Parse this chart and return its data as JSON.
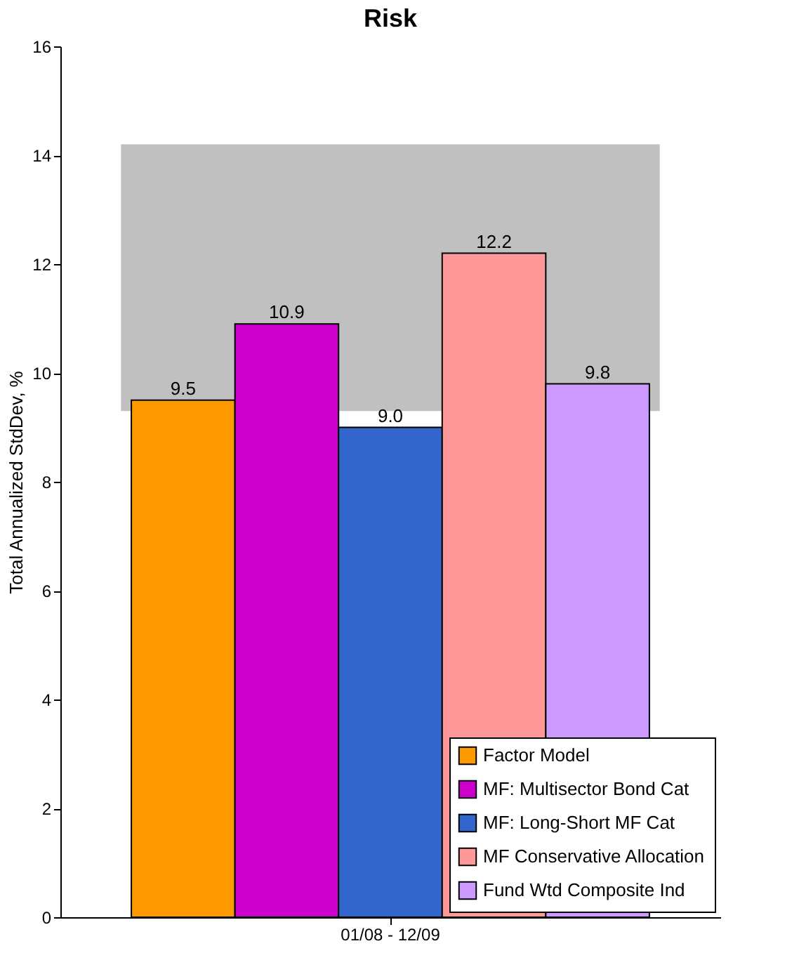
{
  "chart_data": {
    "type": "bar",
    "title": "Risk",
    "ylabel": "Total Annualized StdDev, %",
    "categories": [
      "01/08 - 12/09"
    ],
    "series": [
      {
        "name": "Factor Model",
        "color": "#ff9900",
        "values": [
          9.5
        ],
        "value_labels": [
          "9.5"
        ]
      },
      {
        "name": "MF: Multisector Bond Cat",
        "color": "#cc00cc",
        "values": [
          10.9
        ],
        "value_labels": [
          "10.9"
        ]
      },
      {
        "name": "MF: Long-Short MF Cat",
        "color": "#3366cc",
        "values": [
          9.0
        ],
        "value_labels": [
          "9.0"
        ]
      },
      {
        "name": "MF Conservative Allocation",
        "color": "#ff9999",
        "values": [
          12.2
        ],
        "value_labels": [
          "12.2"
        ]
      },
      {
        "name": "Fund Wtd Composite Ind",
        "color": "#cc99ff",
        "values": [
          9.8
        ],
        "value_labels": [
          "9.8"
        ]
      }
    ],
    "ylim": [
      0,
      16
    ],
    "yticks": [
      0,
      2,
      4,
      6,
      8,
      10,
      12,
      14,
      16
    ],
    "bands": [
      {
        "axis": "y",
        "from": 9.3,
        "to": 14.2,
        "color": "#c0c0c0"
      }
    ],
    "grid": false,
    "legend": "bottom right"
  }
}
